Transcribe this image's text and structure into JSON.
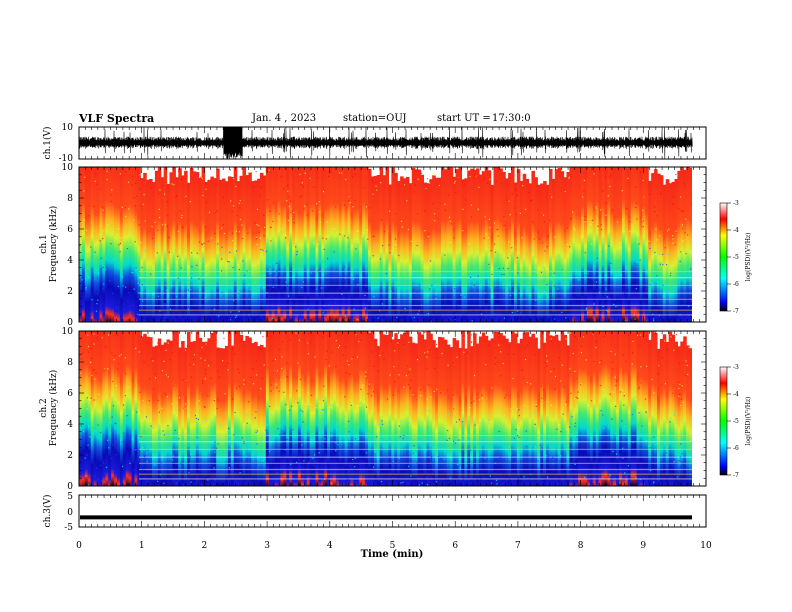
{
  "header": {
    "title": "VLF Spectra",
    "date": "Jan. 4 , 2023",
    "station": "station=OUJ",
    "start_label": "start UT =",
    "start_time": "17:30:0"
  },
  "chart_data": [
    {
      "type": "line",
      "panel": "ch1-waveform",
      "ylabel": "ch.1(V)",
      "ylim": [
        -10,
        10
      ],
      "yticks": [
        "10",
        "-10"
      ],
      "xlim": [
        0,
        10
      ],
      "description_values": {
        "baseline": 0,
        "typical_amplitude": 4,
        "burst_amplitude": 10,
        "burst_interval_min": [
          2.3,
          2.6
        ]
      },
      "color": "#000000"
    },
    {
      "type": "heatmap",
      "panel": "ch1-spectrogram",
      "ylabel": "ch.1 Frequency (kHz)",
      "ylim": [
        0,
        10
      ],
      "yticks": [
        "0",
        "2",
        "4",
        "6",
        "8",
        "10"
      ],
      "xlim": [
        0,
        10
      ],
      "quiet_intervals_min": [
        [
          0.0,
          1.0
        ],
        [
          3.0,
          4.6
        ],
        [
          7.8,
          9.1
        ]
      ],
      "colorbar": {
        "label": "log(PSD)(V²/Hz)",
        "range": [
          -7,
          -3
        ],
        "ticks": [
          "-3",
          "-4",
          "-5",
          "-6",
          "-7"
        ]
      }
    },
    {
      "type": "heatmap",
      "panel": "ch2-spectrogram",
      "ylabel": "ch.2 Frequency (kHz)",
      "ylim": [
        0,
        10
      ],
      "yticks": [
        "0",
        "2",
        "4",
        "6",
        "8",
        "10"
      ],
      "xlim": [
        0,
        10
      ],
      "quiet_intervals_min": [
        [
          0.0,
          1.0
        ],
        [
          3.0,
          4.6
        ],
        [
          7.8,
          9.1
        ]
      ],
      "colorbar": {
        "label": "log(PSD)(V²/Hz)",
        "range": [
          -7,
          -3
        ],
        "ticks": [
          "-3",
          "-4",
          "-5",
          "-6",
          "-7"
        ]
      }
    },
    {
      "type": "line",
      "panel": "ch3-waveform",
      "ylabel": "ch.3(V)",
      "ylim": [
        -5,
        5
      ],
      "yticks": [
        "5",
        "0",
        "-5"
      ],
      "xlim": [
        0,
        10
      ],
      "values_constant": -2,
      "color": "#000000"
    }
  ],
  "xaxis": {
    "label": "Time (min)",
    "ticks": [
      "0",
      "1",
      "2",
      "3",
      "4",
      "5",
      "6",
      "7",
      "8",
      "9",
      "10"
    ]
  },
  "colors": {
    "spectrum_low": "#0000c8",
    "spectrum_mid": "#00e6b4",
    "spectrum_high": "#ff2a1a"
  }
}
